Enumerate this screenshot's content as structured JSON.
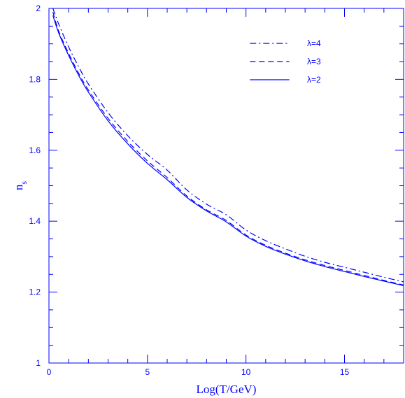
{
  "chart_data": {
    "type": "line",
    "xlabel": "Log(T/GeV)",
    "ylabel_main": "n",
    "ylabel_sub": "s",
    "xlim": [
      0,
      18
    ],
    "ylim": [
      1,
      2
    ],
    "xticks": [
      0,
      5,
      10,
      15
    ],
    "yticks": [
      1,
      1.2,
      1.4,
      1.6,
      1.8,
      2
    ],
    "x_minor_step": 1,
    "y_minor_step": 0.05,
    "legend_placement": "top-right",
    "grid": false,
    "color": "#0000ff",
    "x": [
      0.2,
      0.5,
      1,
      1.5,
      2,
      3,
      4,
      5,
      6,
      7,
      8,
      9,
      10,
      11,
      12,
      13,
      14,
      15,
      16,
      17,
      18
    ],
    "series": [
      {
        "name": "λ=4",
        "dash": "dashdot",
        "values": [
          2.0,
          1.955,
          1.891,
          1.836,
          1.787,
          1.706,
          1.641,
          1.588,
          1.544,
          1.488,
          1.448,
          1.418,
          1.375,
          1.345,
          1.322,
          1.301,
          1.284,
          1.27,
          1.256,
          1.242,
          1.229
        ]
      },
      {
        "name": "λ=3",
        "dash": "dashed",
        "values": [
          1.99,
          1.935,
          1.873,
          1.818,
          1.77,
          1.69,
          1.625,
          1.57,
          1.523,
          1.471,
          1.432,
          1.402,
          1.361,
          1.332,
          1.31,
          1.291,
          1.275,
          1.261,
          1.247,
          1.233,
          1.22
        ]
      },
      {
        "name": "λ=2",
        "dash": "solid",
        "values": [
          1.98,
          1.93,
          1.867,
          1.812,
          1.764,
          1.683,
          1.618,
          1.563,
          1.517,
          1.467,
          1.429,
          1.398,
          1.358,
          1.329,
          1.307,
          1.288,
          1.272,
          1.258,
          1.244,
          1.231,
          1.218
        ]
      }
    ]
  }
}
